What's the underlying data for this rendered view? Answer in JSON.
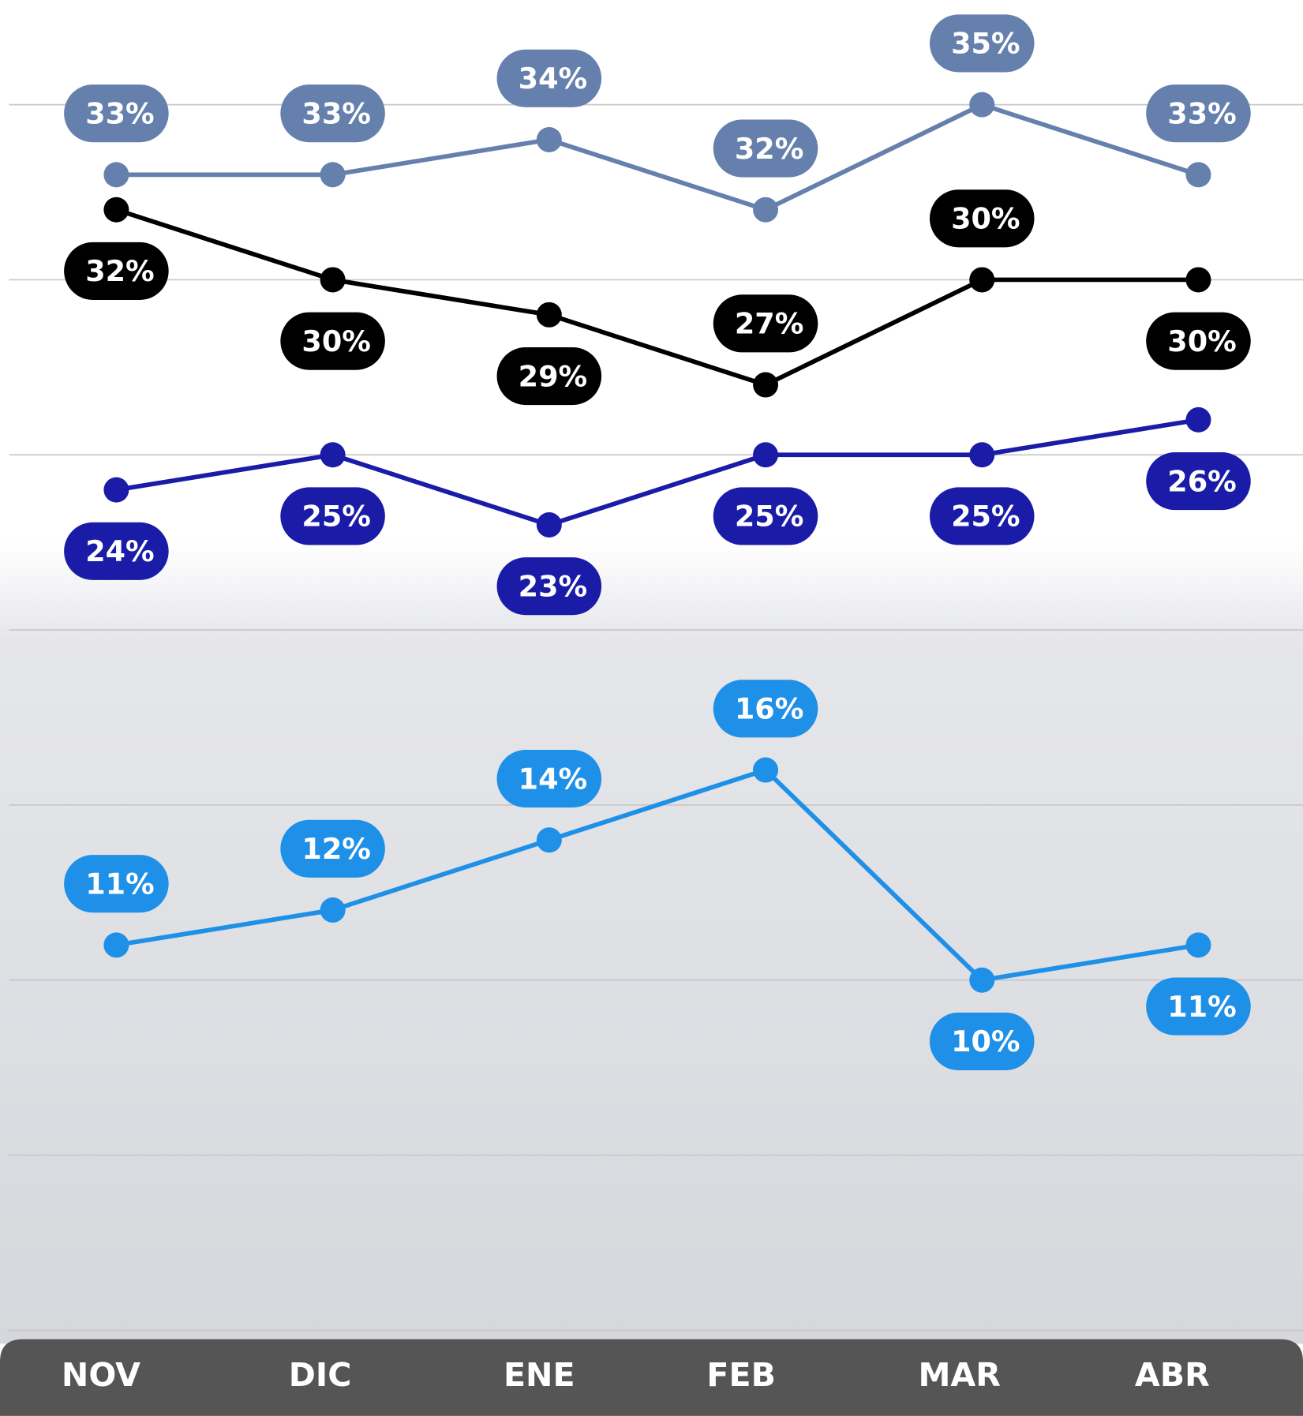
{
  "chart_data": {
    "type": "line",
    "categories": [
      "NOV",
      "DIC",
      "ENE",
      "FEB",
      "MAR",
      "ABR"
    ],
    "series": [
      {
        "color": "#6680ae",
        "values": [
          33,
          33,
          34,
          32,
          35,
          33
        ]
      },
      {
        "color": "#000000",
        "values": [
          32,
          30,
          29,
          27,
          30,
          30
        ]
      },
      {
        "color": "#1a1ca8",
        "values": [
          24,
          25,
          23,
          25,
          25,
          26
        ]
      },
      {
        "color": "#1e90e8",
        "values": [
          11,
          12,
          14,
          16,
          10,
          11
        ]
      }
    ],
    "value_labels": [
      [
        "33%",
        "33%",
        "34%",
        "32%",
        "35%",
        "33%"
      ],
      [
        "32%",
        "30%",
        "29%",
        "27%",
        "30%",
        "30%"
      ],
      [
        "24%",
        "25%",
        "23%",
        "25%",
        "25%",
        "26%"
      ],
      [
        "11%",
        "12%",
        "14%",
        "16%",
        "10%",
        "11%"
      ]
    ],
    "ylim": [
      0,
      35
    ],
    "yticks": [
      0,
      5,
      10,
      15,
      20,
      25,
      30,
      35
    ],
    "grid": true
  }
}
